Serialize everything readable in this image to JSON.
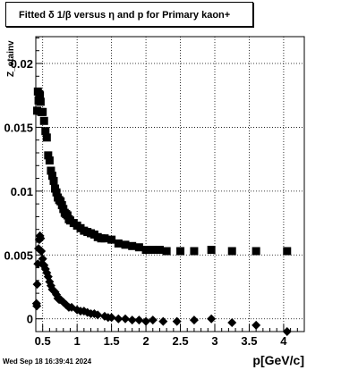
{
  "title": "Fitted δ 1/β versus η and p for Primary kaon+",
  "footer_date": "Wed Sep 18 16:39:41 2024",
  "chart_data": {
    "type": "scatter",
    "title": "Fitted δ 1/β versus η and p for Primary kaon+",
    "xlabel": "p[GeV/c]",
    "ylabel": "Z_etainv",
    "xlim": [
      0.4,
      4.3
    ],
    "ylim": [
      -0.001,
      0.0221
    ],
    "x_ticks": [
      0.5,
      1,
      1.5,
      2,
      2.5,
      3,
      3.5,
      4
    ],
    "x_tick_labels": [
      "0.5",
      "1",
      "1.5",
      "2",
      "2.5",
      "3",
      "3.5",
      "4"
    ],
    "y_ticks": [
      0,
      0.005,
      0.01,
      0.015,
      0.02
    ],
    "y_tick_labels": [
      "0",
      "0.005",
      "0.01",
      "0.015",
      "0.02"
    ],
    "grid": true,
    "series": [
      {
        "marker": "square",
        "points": [
          [
            0.42,
            0.0163
          ],
          [
            0.43,
            0.0178
          ],
          [
            0.44,
            0.0171
          ],
          [
            0.45,
            0.0176
          ],
          [
            0.46,
            0.0175
          ],
          [
            0.47,
            0.017
          ],
          [
            0.48,
            0.0162
          ],
          [
            0.5,
            0.0162
          ],
          [
            0.52,
            0.0155
          ],
          [
            0.54,
            0.0147
          ],
          [
            0.56,
            0.0142
          ],
          [
            0.58,
            0.0128
          ],
          [
            0.6,
            0.0124
          ],
          [
            0.62,
            0.0116
          ],
          [
            0.64,
            0.0112
          ],
          [
            0.66,
            0.0108
          ],
          [
            0.68,
            0.0102
          ],
          [
            0.7,
            0.0099
          ],
          [
            0.72,
            0.0095
          ],
          [
            0.74,
            0.0093
          ],
          [
            0.76,
            0.0092
          ],
          [
            0.78,
            0.0089
          ],
          [
            0.8,
            0.0086
          ],
          [
            0.82,
            0.0083
          ],
          [
            0.84,
            0.0082
          ],
          [
            0.86,
            0.0081
          ],
          [
            0.88,
            0.0078
          ],
          [
            0.9,
            0.0077
          ],
          [
            0.95,
            0.0075
          ],
          [
            1.0,
            0.0073
          ],
          [
            1.05,
            0.0071
          ],
          [
            1.1,
            0.0069
          ],
          [
            1.15,
            0.0068
          ],
          [
            1.2,
            0.0067
          ],
          [
            1.25,
            0.0066
          ],
          [
            1.3,
            0.0064
          ],
          [
            1.35,
            0.0063
          ],
          [
            1.4,
            0.0063
          ],
          [
            1.5,
            0.0062
          ],
          [
            1.6,
            0.0059
          ],
          [
            1.7,
            0.0058
          ],
          [
            1.8,
            0.0057
          ],
          [
            1.9,
            0.0056
          ],
          [
            2.0,
            0.0054
          ],
          [
            2.1,
            0.0054
          ],
          [
            2.2,
            0.0054
          ],
          [
            2.3,
            0.0053
          ],
          [
            2.5,
            0.0053
          ],
          [
            2.7,
            0.0053
          ],
          [
            2.95,
            0.0054
          ],
          [
            3.25,
            0.0053
          ],
          [
            3.6,
            0.0053
          ],
          [
            4.05,
            0.0053
          ]
        ]
      },
      {
        "marker": "diamond",
        "points": [
          [
            0.41,
            0.0012
          ],
          [
            0.415,
            0.001
          ],
          [
            0.42,
            0.0027
          ],
          [
            0.43,
            0.0043
          ],
          [
            0.44,
            0.0055
          ],
          [
            0.45,
            0.0062
          ],
          [
            0.46,
            0.0065
          ],
          [
            0.47,
            0.0063
          ],
          [
            0.48,
            0.0053
          ],
          [
            0.49,
            0.0043
          ],
          [
            0.5,
            0.0047
          ],
          [
            0.52,
            0.0042
          ],
          [
            0.54,
            0.0039
          ],
          [
            0.56,
            0.0036
          ],
          [
            0.58,
            0.0033
          ],
          [
            0.6,
            0.0029
          ],
          [
            0.62,
            0.0026
          ],
          [
            0.64,
            0.0023
          ],
          [
            0.66,
            0.0022
          ],
          [
            0.68,
            0.0021
          ],
          [
            0.7,
            0.0019
          ],
          [
            0.72,
            0.0016
          ],
          [
            0.74,
            0.0015
          ],
          [
            0.76,
            0.0015
          ],
          [
            0.8,
            0.0013
          ],
          [
            0.84,
            0.0011
          ],
          [
            0.88,
            0.0009
          ],
          [
            0.92,
            0.0009
          ],
          [
            1.0,
            0.0007
          ],
          [
            1.05,
            0.0006
          ],
          [
            1.1,
            0.0006
          ],
          [
            1.15,
            0.0005
          ],
          [
            1.2,
            0.0004
          ],
          [
            1.25,
            0.0004
          ],
          [
            1.3,
            0.0003
          ],
          [
            1.4,
            0.0002
          ],
          [
            1.45,
            0.0001
          ],
          [
            1.5,
            0.0001
          ],
          [
            1.6,
            0.0
          ],
          [
            1.7,
            0.0
          ],
          [
            1.8,
            -0.0001
          ],
          [
            1.9,
            -0.0001
          ],
          [
            2.0,
            -0.0002
          ],
          [
            2.1,
            -0.0001
          ],
          [
            2.25,
            -0.0002
          ],
          [
            2.45,
            -0.0002
          ],
          [
            2.7,
            -0.0001
          ],
          [
            2.95,
            0.0
          ],
          [
            3.25,
            -0.0003
          ],
          [
            3.6,
            -0.0005
          ],
          [
            4.05,
            -0.001
          ]
        ]
      }
    ]
  }
}
